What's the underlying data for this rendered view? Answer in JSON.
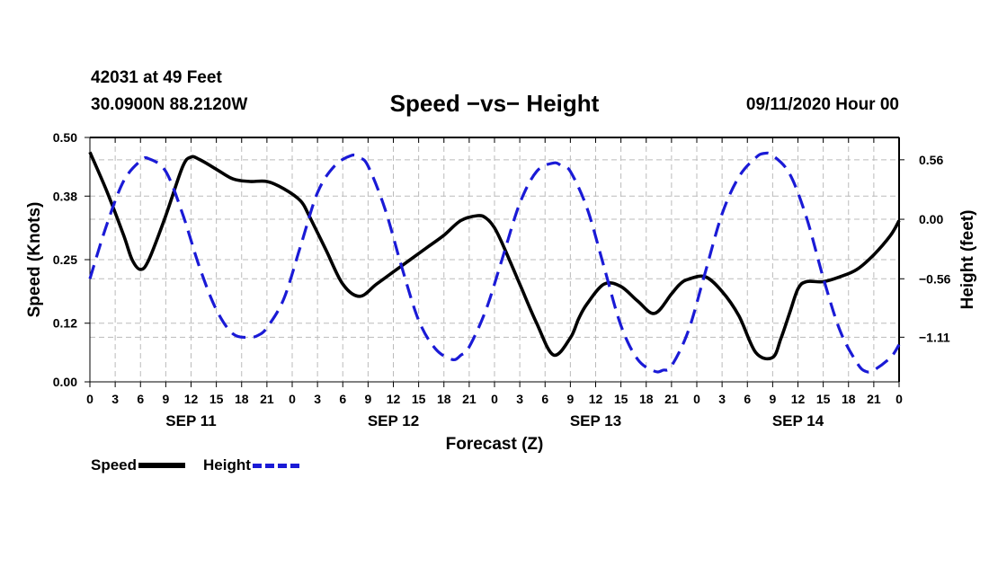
{
  "header": {
    "station": "42031 at 49 Feet",
    "coords": "30.0900N 88.2120W",
    "title": "Speed −vs− Height",
    "date": "09/11/2020 Hour 00"
  },
  "legend": {
    "speed_label": "Speed",
    "height_label": "Height"
  },
  "colors": {
    "speed": "#000000",
    "height": "#1a1ad6",
    "grid": "#bbbbbb"
  },
  "chart_data": {
    "type": "line",
    "title": "Speed −vs− Height",
    "xlabel": "Forecast (Z)",
    "ylabel": "Speed (Knots)",
    "y2label": "Height (feet)",
    "xlim": [
      0,
      96
    ],
    "ylim": [
      0,
      0.5
    ],
    "y2lim": [
      -1.53,
      0.77
    ],
    "x_ticks": [
      0,
      3,
      6,
      9,
      12,
      15,
      18,
      21,
      24,
      27,
      30,
      33,
      36,
      39,
      42,
      45,
      48,
      51,
      54,
      57,
      60,
      63,
      66,
      69,
      72,
      75,
      78,
      81,
      84,
      87,
      90,
      93,
      96
    ],
    "x_tick_labels": [
      "0",
      "3",
      "6",
      "9",
      "12",
      "15",
      "18",
      "21",
      "0",
      "3",
      "6",
      "9",
      "12",
      "15",
      "18",
      "21",
      "0",
      "3",
      "6",
      "9",
      "12",
      "15",
      "18",
      "21",
      "0",
      "3",
      "6",
      "9",
      "12",
      "15",
      "18",
      "21",
      "0"
    ],
    "day_labels": [
      {
        "label": "SEP 11",
        "x": 12
      },
      {
        "label": "SEP 12",
        "x": 36
      },
      {
        "label": "SEP 13",
        "x": 60
      },
      {
        "label": "SEP 14",
        "x": 84
      }
    ],
    "y_ticks": [
      0.0,
      0.12,
      0.25,
      0.38,
      0.5
    ],
    "y_tick_labels": [
      "0.00",
      "0.12",
      "0.25",
      "0.38",
      "0.50"
    ],
    "y2_ticks": [
      0.56,
      0.0,
      -0.56,
      -1.11
    ],
    "y2_tick_labels": [
      "0.56",
      "0.00",
      "−0.56",
      "−1.11"
    ],
    "grid": true,
    "legend_position": "bottom-left",
    "series": [
      {
        "name": "Speed",
        "axis": "left",
        "style": "solid",
        "x": [
          0,
          2,
          4,
          5,
          6,
          7,
          9,
          11,
          12,
          13,
          15,
          17,
          19,
          21,
          23,
          25,
          26,
          28,
          30,
          32,
          34,
          36,
          38,
          40,
          42,
          44,
          46,
          47,
          48,
          49,
          51,
          53,
          55,
          57,
          58,
          59,
          61,
          63,
          65,
          67,
          69,
          70,
          71,
          73,
          75,
          77,
          79,
          81,
          82,
          83,
          84,
          85,
          87,
          89,
          91,
          93,
          95,
          96
        ],
        "y": [
          0.47,
          0.39,
          0.3,
          0.25,
          0.23,
          0.25,
          0.34,
          0.44,
          0.46,
          0.455,
          0.435,
          0.415,
          0.41,
          0.41,
          0.395,
          0.37,
          0.34,
          0.27,
          0.2,
          0.175,
          0.2,
          0.225,
          0.25,
          0.275,
          0.3,
          0.33,
          0.34,
          0.335,
          0.315,
          0.28,
          0.2,
          0.12,
          0.055,
          0.09,
          0.13,
          0.16,
          0.2,
          0.195,
          0.165,
          0.14,
          0.18,
          0.2,
          0.21,
          0.215,
          0.185,
          0.135,
          0.06,
          0.05,
          0.09,
          0.14,
          0.19,
          0.205,
          0.205,
          0.215,
          0.23,
          0.26,
          0.3,
          0.33
        ]
      },
      {
        "name": "Height",
        "axis": "right",
        "style": "dashed",
        "x": [
          0,
          2,
          4,
          6,
          7,
          9,
          11,
          13,
          15,
          17,
          19,
          20,
          21,
          23,
          25,
          27,
          29,
          31,
          32,
          33,
          35,
          37,
          39,
          41,
          43,
          44,
          45,
          47,
          49,
          51,
          53,
          55,
          56,
          57,
          59,
          61,
          63,
          65,
          67,
          68,
          69,
          71,
          73,
          75,
          77,
          79,
          80,
          81,
          83,
          85,
          87,
          89,
          91,
          92,
          93,
          95,
          96
        ],
        "y": [
          -0.56,
          -0.05,
          0.36,
          0.55,
          0.57,
          0.45,
          0.05,
          -0.45,
          -0.85,
          -1.08,
          -1.11,
          -1.09,
          -1.02,
          -0.75,
          -0.25,
          0.25,
          0.5,
          0.6,
          0.58,
          0.5,
          0.1,
          -0.45,
          -0.95,
          -1.22,
          -1.32,
          -1.28,
          -1.2,
          -0.85,
          -0.35,
          0.15,
          0.45,
          0.53,
          0.5,
          0.45,
          0.1,
          -0.45,
          -1.0,
          -1.32,
          -1.43,
          -1.42,
          -1.38,
          -1.05,
          -0.5,
          0.05,
          0.4,
          0.58,
          0.62,
          0.6,
          0.43,
          0.02,
          -0.55,
          -1.05,
          -1.35,
          -1.43,
          -1.42,
          -1.3,
          -1.18
        ]
      }
    ]
  }
}
